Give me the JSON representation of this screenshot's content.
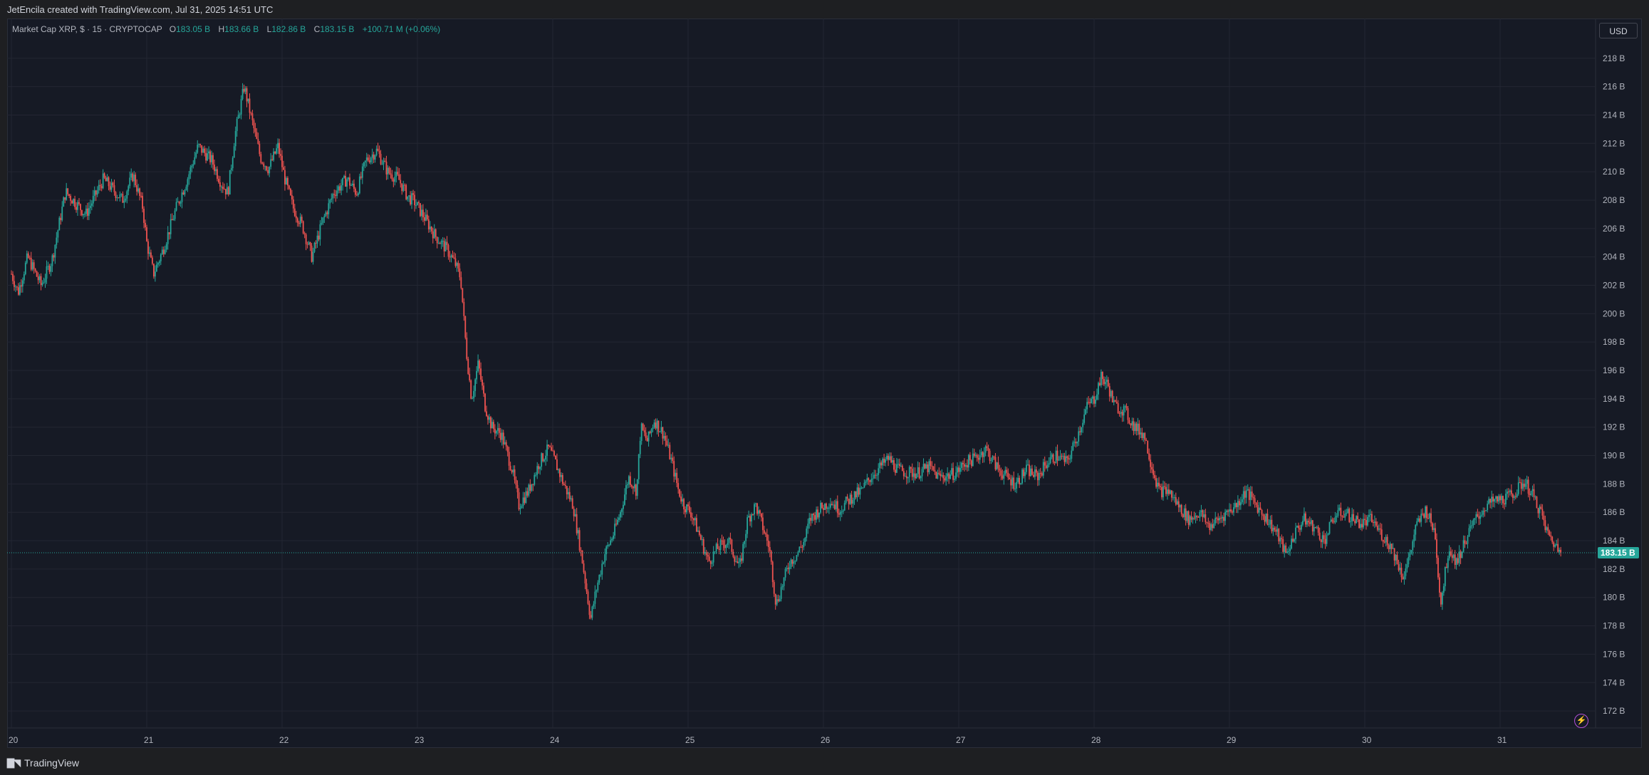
{
  "header": {
    "credit": "JetEncila created with TradingView.com, Jul 31, 2025 14:51 UTC"
  },
  "legend": {
    "symbol": "Market Cap XRP, $ · 15 · CRYPTOCAP",
    "open_label": "O",
    "open": "183.05 B",
    "high_label": "H",
    "high": "183.66 B",
    "low_label": "L",
    "low": "182.86 B",
    "close_label": "C",
    "close": "183.15 B",
    "change": "+100.71 M (+0.06%)"
  },
  "currency_button": "USD",
  "footer": {
    "brand": "TradingView"
  },
  "colors": {
    "up": "#26a69a",
    "down": "#ef5350",
    "background": "#161a25",
    "grid": "#232632",
    "price_tag": "#26a69a",
    "bolt": "#b14fd6"
  },
  "chart_data": {
    "type": "candlestick",
    "interval": "15",
    "x_axis": {
      "tick_labels": [
        "20",
        "21",
        "22",
        "23",
        "24",
        "25",
        "26",
        "27",
        "28",
        "29",
        "30",
        "31"
      ],
      "range": [
        0,
        11.72
      ]
    },
    "y_axis": {
      "unit": "B",
      "tick_labels": [
        "218 B",
        "216 B",
        "214 B",
        "212 B",
        "210 B",
        "208 B",
        "206 B",
        "204 B",
        "202 B",
        "200 B",
        "198 B",
        "196 B",
        "194 B",
        "192 B",
        "190 B",
        "188 B",
        "186 B",
        "184 B",
        "182 B",
        "180 B",
        "178 B",
        "176 B",
        "174 B",
        "172 B"
      ],
      "ticks": [
        218,
        216,
        214,
        212,
        210,
        208,
        206,
        204,
        202,
        200,
        198,
        196,
        194,
        192,
        190,
        188,
        186,
        184,
        182,
        180,
        178,
        176,
        174,
        172
      ],
      "range": [
        170.8,
        220.8
      ]
    },
    "current_price": 183.15,
    "current_price_label": "183.15 B",
    "grid": true,
    "path": [
      [
        0.0,
        202.8
      ],
      [
        0.05,
        201.5
      ],
      [
        0.12,
        204.0
      ],
      [
        0.22,
        202.0
      ],
      [
        0.3,
        203.8
      ],
      [
        0.4,
        208.6
      ],
      [
        0.55,
        207.0
      ],
      [
        0.68,
        209.5
      ],
      [
        0.82,
        208.0
      ],
      [
        0.9,
        209.8
      ],
      [
        0.97,
        207.5
      ],
      [
        1.0,
        205.0
      ],
      [
        1.05,
        202.8
      ],
      [
        1.12,
        204.5
      ],
      [
        1.22,
        207.5
      ],
      [
        1.3,
        209.5
      ],
      [
        1.38,
        211.8
      ],
      [
        1.48,
        210.8
      ],
      [
        1.55,
        209.2
      ],
      [
        1.6,
        208.5
      ],
      [
        1.65,
        212.5
      ],
      [
        1.72,
        216.0
      ],
      [
        1.78,
        213.5
      ],
      [
        1.84,
        211.0
      ],
      [
        1.9,
        210.2
      ],
      [
        1.97,
        211.8
      ],
      [
        2.02,
        209.5
      ],
      [
        2.08,
        207.5
      ],
      [
        2.15,
        206.2
      ],
      [
        2.22,
        204.0
      ],
      [
        2.3,
        206.5
      ],
      [
        2.38,
        208.5
      ],
      [
        2.48,
        209.5
      ],
      [
        2.55,
        208.5
      ],
      [
        2.62,
        210.8
      ],
      [
        2.7,
        211.5
      ],
      [
        2.78,
        210.0
      ],
      [
        2.86,
        209.5
      ],
      [
        2.93,
        208.2
      ],
      [
        2.97,
        208.0
      ],
      [
        3.05,
        206.8
      ],
      [
        3.13,
        205.5
      ],
      [
        3.22,
        204.5
      ],
      [
        3.28,
        203.5
      ],
      [
        3.32,
        202.5
      ],
      [
        3.36,
        197.5
      ],
      [
        3.4,
        194.0
      ],
      [
        3.45,
        196.5
      ],
      [
        3.5,
        193.5
      ],
      [
        3.55,
        192.0
      ],
      [
        3.62,
        191.5
      ],
      [
        3.7,
        189.0
      ],
      [
        3.75,
        186.5
      ],
      [
        3.82,
        187.5
      ],
      [
        3.9,
        189.5
      ],
      [
        3.97,
        190.5
      ],
      [
        4.02,
        189.5
      ],
      [
        4.08,
        188.0
      ],
      [
        4.15,
        186.5
      ],
      [
        4.22,
        182.5
      ],
      [
        4.28,
        178.5
      ],
      [
        4.32,
        180.5
      ],
      [
        4.38,
        183.0
      ],
      [
        4.45,
        184.5
      ],
      [
        4.5,
        186.0
      ],
      [
        4.56,
        188.5
      ],
      [
        4.62,
        187.5
      ],
      [
        4.65,
        192.0
      ],
      [
        4.7,
        191.0
      ],
      [
        4.75,
        192.5
      ],
      [
        4.82,
        191.5
      ],
      [
        4.88,
        189.5
      ],
      [
        4.93,
        187.5
      ],
      [
        4.97,
        186.5
      ],
      [
        5.02,
        186.0
      ],
      [
        5.08,
        184.5
      ],
      [
        5.15,
        182.5
      ],
      [
        5.22,
        183.5
      ],
      [
        5.3,
        184.0
      ],
      [
        5.38,
        182.0
      ],
      [
        5.44,
        185.5
      ],
      [
        5.5,
        186.5
      ],
      [
        5.55,
        185.0
      ],
      [
        5.6,
        183.5
      ],
      [
        5.65,
        179.5
      ],
      [
        5.7,
        181.0
      ],
      [
        5.75,
        182.5
      ],
      [
        5.8,
        183.0
      ],
      [
        5.86,
        184.0
      ],
      [
        5.9,
        185.5
      ],
      [
        5.97,
        186.2
      ],
      [
        6.05,
        186.8
      ],
      [
        6.12,
        186.2
      ],
      [
        6.2,
        187.0
      ],
      [
        6.28,
        187.5
      ],
      [
        6.35,
        188.5
      ],
      [
        6.42,
        189.2
      ],
      [
        6.48,
        189.8
      ],
      [
        6.55,
        189.0
      ],
      [
        6.62,
        188.8
      ],
      [
        6.7,
        188.8
      ],
      [
        6.78,
        189.2
      ],
      [
        6.85,
        188.5
      ],
      [
        6.92,
        188.6
      ],
      [
        6.98,
        188.8
      ],
      [
        7.05,
        189.5
      ],
      [
        7.12,
        189.8
      ],
      [
        7.2,
        190.5
      ],
      [
        7.28,
        189.2
      ],
      [
        7.35,
        188.5
      ],
      [
        7.42,
        188.0
      ],
      [
        7.5,
        189.0
      ],
      [
        7.58,
        188.5
      ],
      [
        7.65,
        189.5
      ],
      [
        7.72,
        190.0
      ],
      [
        7.8,
        189.5
      ],
      [
        7.88,
        191.5
      ],
      [
        7.95,
        193.5
      ],
      [
        8.0,
        194.0
      ],
      [
        8.05,
        195.5
      ],
      [
        8.1,
        195.0
      ],
      [
        8.15,
        193.5
      ],
      [
        8.22,
        193.2
      ],
      [
        8.3,
        192.0
      ],
      [
        8.37,
        191.5
      ],
      [
        8.42,
        189.5
      ],
      [
        8.48,
        187.5
      ],
      [
        8.55,
        187.5
      ],
      [
        8.62,
        186.5
      ],
      [
        8.7,
        185.5
      ],
      [
        8.78,
        186.0
      ],
      [
        8.85,
        185.0
      ],
      [
        8.92,
        185.5
      ],
      [
        8.98,
        186.0
      ],
      [
        9.05,
        186.5
      ],
      [
        9.12,
        187.5
      ],
      [
        9.2,
        186.5
      ],
      [
        9.28,
        185.5
      ],
      [
        9.35,
        184.5
      ],
      [
        9.42,
        183.0
      ],
      [
        9.48,
        184.5
      ],
      [
        9.55,
        185.5
      ],
      [
        9.62,
        185.0
      ],
      [
        9.7,
        184.0
      ],
      [
        9.78,
        185.8
      ],
      [
        9.85,
        186.0
      ],
      [
        9.92,
        185.5
      ],
      [
        9.98,
        185.2
      ],
      [
        10.05,
        185.5
      ],
      [
        10.12,
        184.5
      ],
      [
        10.2,
        183.5
      ],
      [
        10.28,
        181.5
      ],
      [
        10.32,
        182.5
      ],
      [
        10.38,
        185.0
      ],
      [
        10.45,
        186.2
      ],
      [
        10.52,
        184.5
      ],
      [
        10.56,
        179.5
      ],
      [
        10.62,
        183.5
      ],
      [
        10.68,
        182.5
      ],
      [
        10.75,
        184.2
      ],
      [
        10.82,
        185.5
      ],
      [
        10.9,
        186.5
      ],
      [
        10.97,
        186.8
      ],
      [
        11.05,
        187.0
      ],
      [
        11.12,
        187.5
      ],
      [
        11.18,
        188.2
      ],
      [
        11.25,
        187.0
      ],
      [
        11.3,
        186.0
      ],
      [
        11.35,
        184.5
      ],
      [
        11.4,
        183.8
      ],
      [
        11.45,
        183.15
      ]
    ]
  }
}
